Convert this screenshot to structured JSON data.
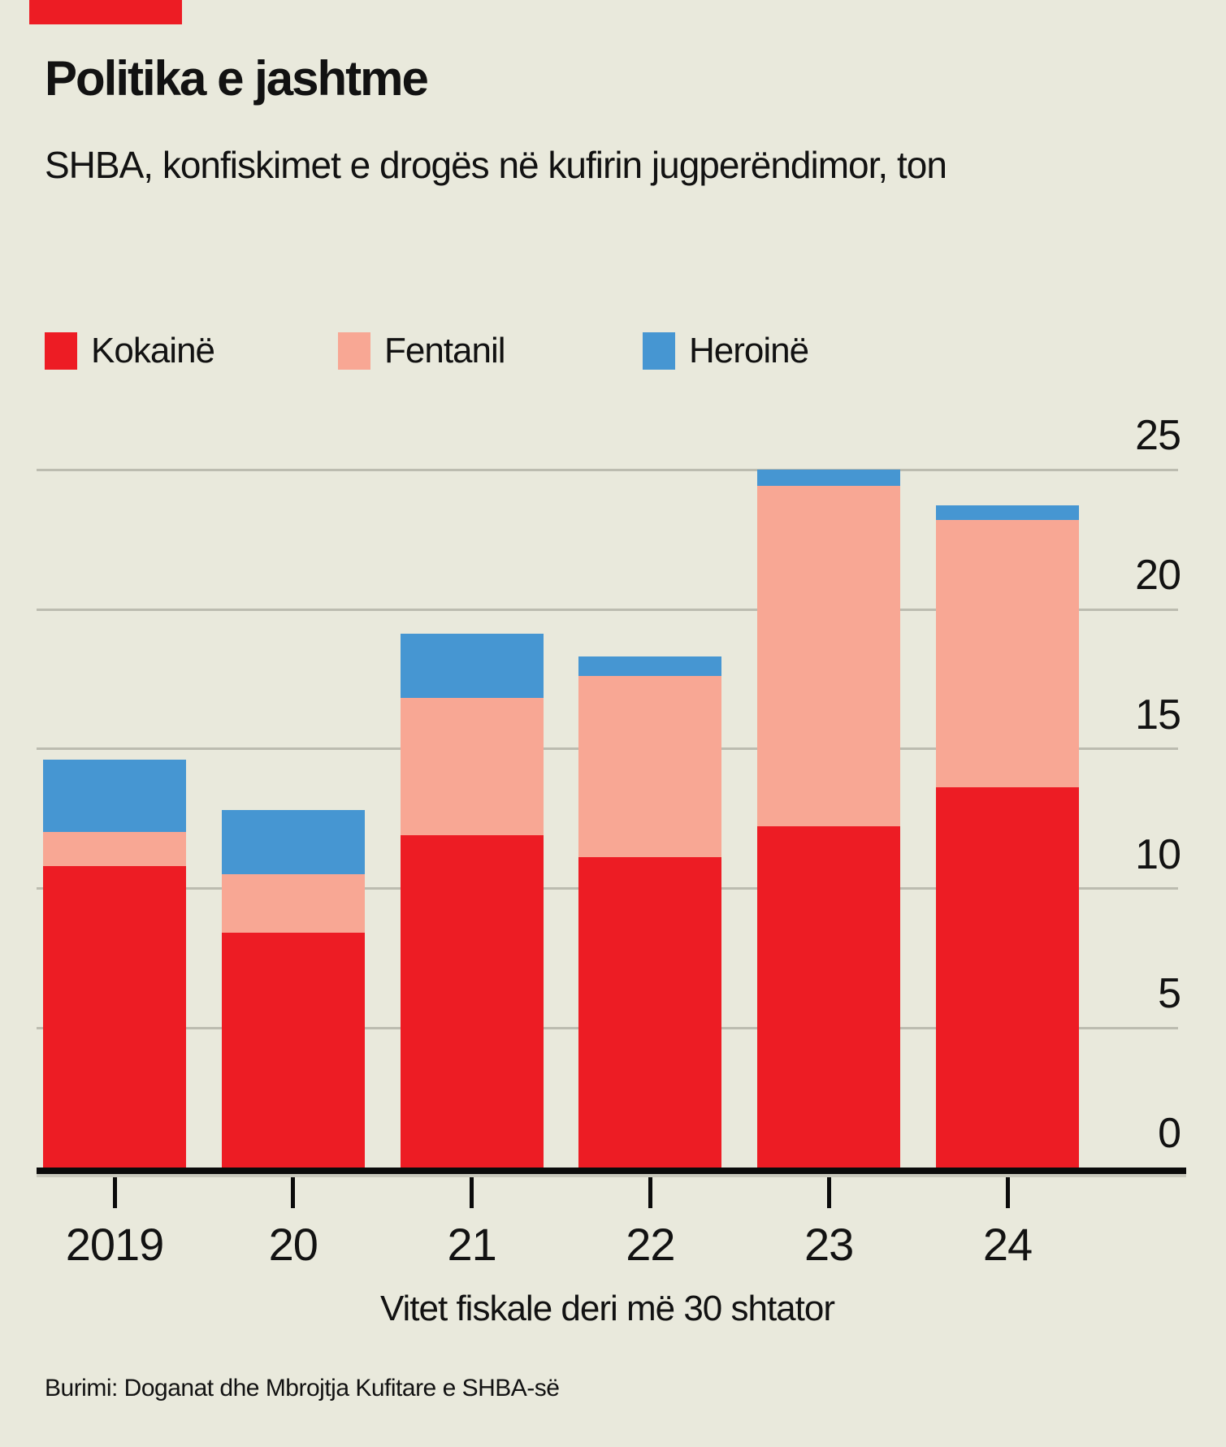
{
  "header": {
    "tag_color": "#ed1c24",
    "title": "Politika e jashtme",
    "subtitle": "SHBA, konfiskimet e drogës në kufirin jugperëndimor, ton"
  },
  "legend": [
    {
      "label": "Kokainë",
      "color": "#ed1c24"
    },
    {
      "label": "Fentanil",
      "color": "#f8a794"
    },
    {
      "label": "Heroinë",
      "color": "#4696d2"
    }
  ],
  "chart_data": {
    "type": "bar",
    "stacked": true,
    "title": "Politika e jashtme",
    "subtitle": "SHBA, konfiskimet e drogës në kufirin jugperëndimor, ton",
    "categories": [
      "2019",
      "20",
      "21",
      "22",
      "23",
      "24"
    ],
    "series": [
      {
        "name": "Kokainë",
        "color": "#ed1c24",
        "values": [
          10.9,
          8.5,
          12.0,
          11.2,
          12.3,
          13.7
        ]
      },
      {
        "name": "Fentanil",
        "color": "#f8a794",
        "values": [
          1.2,
          2.1,
          4.9,
          6.5,
          12.2,
          9.6
        ]
      },
      {
        "name": "Heroinë",
        "color": "#4696d2",
        "values": [
          2.6,
          2.3,
          2.3,
          0.7,
          0.6,
          0.5
        ]
      }
    ],
    "totals": [
      14.7,
      12.9,
      19.2,
      18.4,
      25.1,
      23.8
    ],
    "y_ticks": [
      0,
      5,
      10,
      15,
      20,
      25
    ],
    "ylim": [
      0,
      25
    ],
    "xlabel": "Vitet fiskale deri më 30 shtator",
    "ylabel": "",
    "unit": "ton",
    "grid": true,
    "legend_position": "top",
    "y_axis_side": "right"
  },
  "footer": {
    "source": "Burimi: Doganat dhe Mbrojtja Kufitare e SHBA-së"
  }
}
